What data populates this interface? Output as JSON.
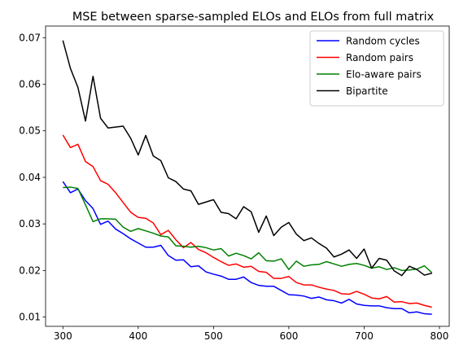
{
  "chart_data": {
    "type": "line",
    "title": "MSE between sparse-sampled ELOs and ELOs from full matrix",
    "xlabel": "",
    "ylabel": "",
    "xlim": [
      277,
      813
    ],
    "ylim": [
      0.008,
      0.0725
    ],
    "xticks": [
      300,
      400,
      500,
      600,
      700,
      800
    ],
    "xtick_labels": [
      "300",
      "400",
      "500",
      "600",
      "700",
      "800"
    ],
    "yticks": [
      0.01,
      0.02,
      0.03,
      0.04,
      0.05,
      0.06,
      0.07
    ],
    "ytick_labels": [
      "0.01",
      "0.02",
      "0.03",
      "0.04",
      "0.05",
      "0.06",
      "0.07"
    ],
    "grid": false,
    "legend_position": "upper right",
    "x": [
      300,
      310,
      320,
      330,
      340,
      350,
      360,
      370,
      380,
      390,
      400,
      410,
      420,
      430,
      440,
      450,
      460,
      470,
      480,
      490,
      500,
      510,
      520,
      530,
      540,
      550,
      560,
      570,
      580,
      590,
      600,
      610,
      620,
      630,
      640,
      650,
      660,
      670,
      680,
      690,
      700,
      710,
      720,
      730,
      740,
      750,
      760,
      770,
      780,
      790
    ],
    "series": [
      {
        "name": "Random cycles",
        "color": "#0000ff",
        "values": [
          0.0391,
          0.0367,
          0.0375,
          0.035,
          0.0333,
          0.0299,
          0.0306,
          0.0289,
          0.0279,
          0.0268,
          0.0259,
          0.025,
          0.025,
          0.0254,
          0.0232,
          0.0222,
          0.0223,
          0.0208,
          0.021,
          0.0197,
          0.0192,
          0.0188,
          0.0181,
          0.0181,
          0.0186,
          0.0174,
          0.0168,
          0.0166,
          0.0166,
          0.0157,
          0.0148,
          0.0147,
          0.0145,
          0.014,
          0.0143,
          0.0137,
          0.0135,
          0.013,
          0.0138,
          0.0128,
          0.0125,
          0.0124,
          0.0124,
          0.012,
          0.0118,
          0.0118,
          0.0109,
          0.0111,
          0.0107,
          0.0106
        ]
      },
      {
        "name": "Random pairs",
        "color": "#ff0000",
        "values": [
          0.0491,
          0.0464,
          0.0471,
          0.0434,
          0.0423,
          0.0393,
          0.0385,
          0.0367,
          0.0346,
          0.0325,
          0.0314,
          0.0312,
          0.0302,
          0.0277,
          0.0286,
          0.0266,
          0.0249,
          0.026,
          0.0245,
          0.0238,
          0.0228,
          0.0219,
          0.0211,
          0.0214,
          0.0207,
          0.0209,
          0.0198,
          0.0196,
          0.0183,
          0.0183,
          0.0187,
          0.0174,
          0.0169,
          0.0169,
          0.0164,
          0.016,
          0.0157,
          0.015,
          0.0149,
          0.0155,
          0.0149,
          0.0141,
          0.0139,
          0.0144,
          0.0132,
          0.0133,
          0.0129,
          0.013,
          0.0125,
          0.0121
        ]
      },
      {
        "name": "Elo-aware pairs",
        "color": "#008000",
        "values": [
          0.0378,
          0.0379,
          0.0376,
          0.0341,
          0.0305,
          0.0311,
          0.0311,
          0.031,
          0.0293,
          0.0284,
          0.029,
          0.0285,
          0.028,
          0.0274,
          0.0272,
          0.0253,
          0.0252,
          0.025,
          0.0252,
          0.0249,
          0.0244,
          0.0247,
          0.0231,
          0.0237,
          0.0232,
          0.0225,
          0.0238,
          0.0221,
          0.022,
          0.0225,
          0.0202,
          0.022,
          0.0209,
          0.0212,
          0.0213,
          0.0219,
          0.0214,
          0.0209,
          0.0213,
          0.0215,
          0.0211,
          0.0205,
          0.0208,
          0.0202,
          0.0206,
          0.02,
          0.0201,
          0.0203,
          0.021,
          0.0195
        ]
      },
      {
        "name": "Bipartite",
        "color": "#000000",
        "values": [
          0.0694,
          0.0634,
          0.0593,
          0.0521,
          0.0617,
          0.0527,
          0.0506,
          0.0508,
          0.051,
          0.0484,
          0.0448,
          0.049,
          0.0446,
          0.0436,
          0.0399,
          0.0391,
          0.0375,
          0.0371,
          0.0342,
          0.0347,
          0.0352,
          0.0325,
          0.0322,
          0.0311,
          0.0337,
          0.0326,
          0.0282,
          0.0317,
          0.0275,
          0.0293,
          0.0303,
          0.0278,
          0.0264,
          0.027,
          0.0258,
          0.0248,
          0.0229,
          0.0235,
          0.0244,
          0.0226,
          0.0246,
          0.0205,
          0.0226,
          0.0222,
          0.0199,
          0.0189,
          0.0209,
          0.0202,
          0.019,
          0.0194
        ]
      }
    ]
  }
}
